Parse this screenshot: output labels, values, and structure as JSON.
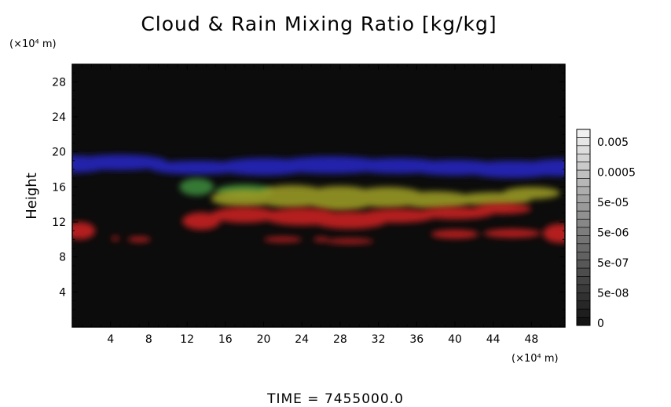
{
  "chart_data": {
    "type": "heatmap",
    "title": "Cloud & Rain Mixing Ratio [kg/kg]",
    "ylabel": "Height",
    "xlabel": "",
    "x_unit": "(×10⁴ m)",
    "y_unit": "(×10⁴ m)",
    "xlim": [
      0,
      51.5
    ],
    "ylim": [
      0,
      30
    ],
    "x_ticks": [
      4,
      8,
      12,
      16,
      20,
      24,
      28,
      32,
      36,
      40,
      44,
      48
    ],
    "y_ticks": [
      4,
      8,
      12,
      16,
      20,
      24,
      28
    ],
    "colorbar": {
      "labels": [
        "0.005",
        "0.0005",
        "5e-05",
        "5e-06",
        "5e-07",
        "5e-08",
        "0"
      ]
    },
    "footer": "TIME = 7455000.0",
    "background_color": "#0c0c0c",
    "layers": [
      {
        "name": "blue",
        "color": "#2828c8",
        "blobs": [
          {
            "x": 0,
            "y": 18.6,
            "rx": 4,
            "ry": 1.0
          },
          {
            "x": 5,
            "y": 18.8,
            "rx": 5,
            "ry": 0.9
          },
          {
            "x": 13,
            "y": 18.2,
            "rx": 5,
            "ry": 0.8
          },
          {
            "x": 20,
            "y": 18.3,
            "rx": 5,
            "ry": 1.0
          },
          {
            "x": 27,
            "y": 18.5,
            "rx": 6,
            "ry": 1.0
          },
          {
            "x": 34,
            "y": 18.4,
            "rx": 5,
            "ry": 0.9
          },
          {
            "x": 40,
            "y": 18.2,
            "rx": 5,
            "ry": 0.9
          },
          {
            "x": 46,
            "y": 18.0,
            "rx": 5,
            "ry": 1.0
          },
          {
            "x": 51,
            "y": 18.2,
            "rx": 4,
            "ry": 1.0
          }
        ]
      },
      {
        "name": "green",
        "color": "#3c8c3c",
        "blobs": [
          {
            "x": 13,
            "y": 16.0,
            "rx": 1.8,
            "ry": 1.0
          },
          {
            "x": 18,
            "y": 15.5,
            "rx": 3,
            "ry": 0.8
          }
        ]
      },
      {
        "name": "yellow",
        "color": "#a0a028",
        "blobs": [
          {
            "x": 18,
            "y": 14.7,
            "rx": 3.5,
            "ry": 1.0
          },
          {
            "x": 23,
            "y": 14.9,
            "rx": 4,
            "ry": 1.3
          },
          {
            "x": 28,
            "y": 14.7,
            "rx": 4,
            "ry": 1.4
          },
          {
            "x": 33,
            "y": 14.8,
            "rx": 4,
            "ry": 1.2
          },
          {
            "x": 38,
            "y": 14.5,
            "rx": 4,
            "ry": 1.0
          },
          {
            "x": 44,
            "y": 14.6,
            "rx": 4,
            "ry": 0.8
          },
          {
            "x": 48,
            "y": 15.3,
            "rx": 3,
            "ry": 0.7
          }
        ]
      },
      {
        "name": "red",
        "color": "#d22020",
        "blobs": [
          {
            "x": 0.8,
            "y": 11.0,
            "rx": 1.6,
            "ry": 1.0
          },
          {
            "x": 13.5,
            "y": 12.1,
            "rx": 2,
            "ry": 1.0
          },
          {
            "x": 18,
            "y": 12.8,
            "rx": 3.5,
            "ry": 0.9
          },
          {
            "x": 24,
            "y": 12.6,
            "rx": 4,
            "ry": 1.0
          },
          {
            "x": 29,
            "y": 12.2,
            "rx": 4,
            "ry": 1.0
          },
          {
            "x": 34,
            "y": 12.7,
            "rx": 4,
            "ry": 0.8
          },
          {
            "x": 40,
            "y": 13.0,
            "rx": 4,
            "ry": 0.7
          },
          {
            "x": 45,
            "y": 13.5,
            "rx": 3,
            "ry": 0.6
          },
          {
            "x": 51,
            "y": 10.7,
            "rx": 1.8,
            "ry": 1.1
          },
          {
            "x": 40,
            "y": 10.6,
            "rx": 2.5,
            "ry": 0.5
          },
          {
            "x": 46,
            "y": 10.7,
            "rx": 3,
            "ry": 0.5
          },
          {
            "x": 7,
            "y": 10.0,
            "rx": 1.2,
            "ry": 0.3
          },
          {
            "x": 22,
            "y": 10.0,
            "rx": 2.0,
            "ry": 0.3
          },
          {
            "x": 29,
            "y": 9.8,
            "rx": 2.5,
            "ry": 0.3
          },
          {
            "x": 26,
            "y": 10.0,
            "rx": 0.8,
            "ry": 0.25
          },
          {
            "x": 4.5,
            "y": 10.1,
            "rx": 0.4,
            "ry": 0.25
          }
        ]
      }
    ]
  }
}
